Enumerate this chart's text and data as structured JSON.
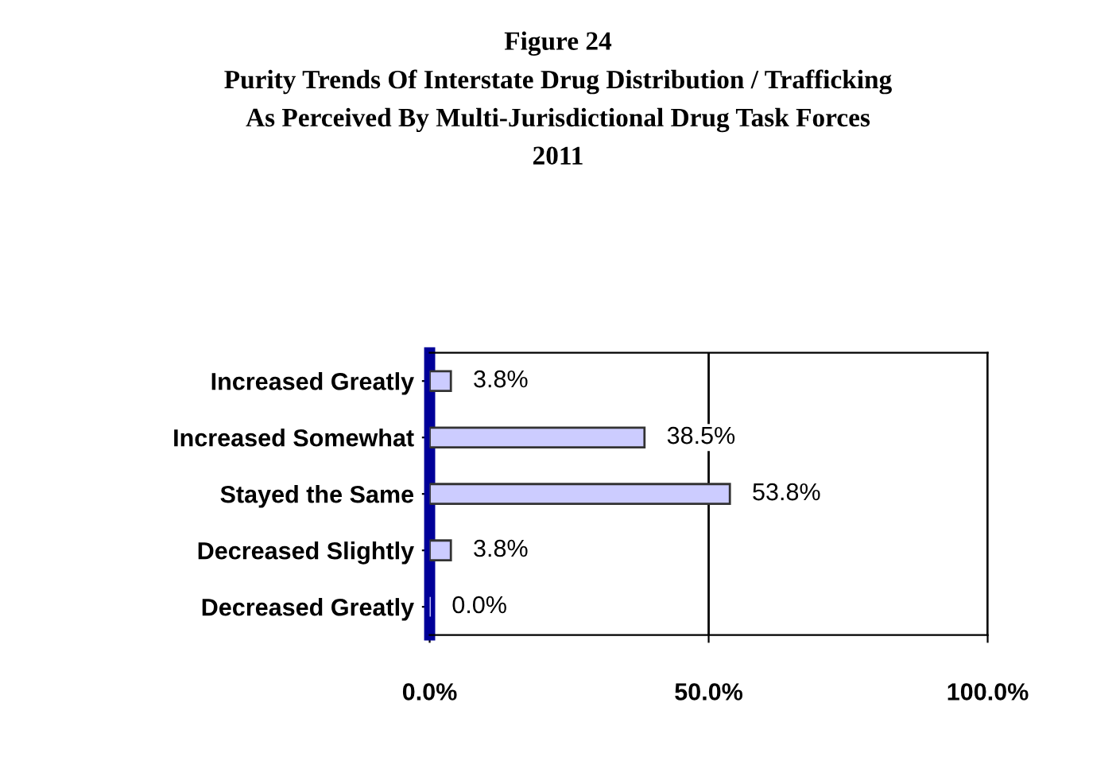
{
  "chart_data": {
    "type": "bar",
    "orientation": "horizontal",
    "title": "Figure 24\nPurity Trends Of Interstate Drug Distribution / Trafficking\nAs Perceived By Multi-Jurisdictional Drug Task Forces\n2011",
    "categories": [
      "Increased Greatly",
      "Increased Somewhat",
      "Stayed the Same",
      "Decreased Slightly",
      "Decreased Greatly"
    ],
    "values": [
      3.8,
      38.5,
      53.8,
      3.8,
      0.0
    ],
    "value_labels": [
      "3.8%",
      "38.5%",
      "53.8%",
      "3.8%",
      "0.0%"
    ],
    "color": "#ccccff",
    "xlim": [
      0,
      100
    ],
    "xticks": [
      {
        "value": 0,
        "label": "0.0%"
      },
      {
        "value": 50,
        "label": "50.0%"
      },
      {
        "value": 100,
        "label": "100.0%"
      }
    ],
    "grid": "x",
    "legend": false
  }
}
